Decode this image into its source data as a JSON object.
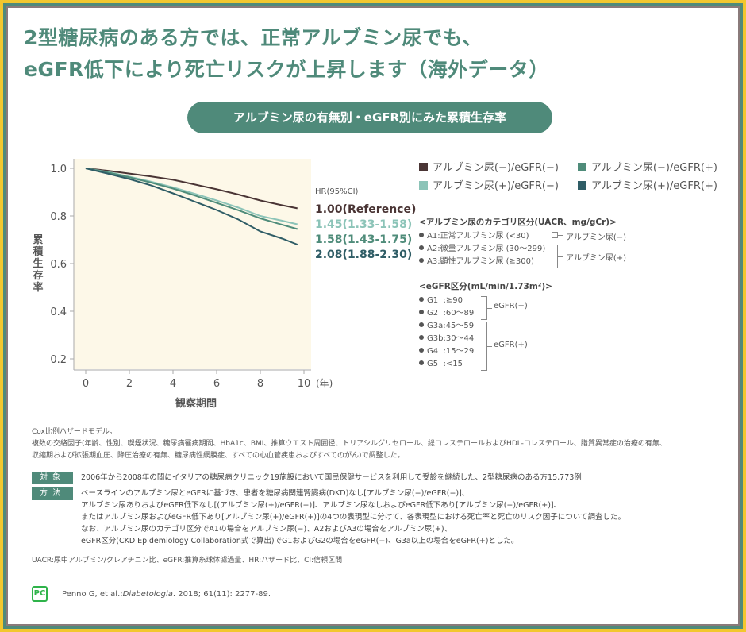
{
  "title_lines": [
    "2型糖尿病のある方では、正常アルブミン尿でも、",
    "eGFR低下により死亡リスクが上昇します（海外データ）"
  ],
  "subtitle": "アルブミン尿の有無別・eGFR別にみた累積生存率",
  "chart_data": {
    "type": "line",
    "xlabel": "観察期間",
    "ylabel": "累積生存率",
    "x_unit": "(年)",
    "xlim": [
      0,
      10
    ],
    "ylim": [
      0.2,
      1.0
    ],
    "xticks": [
      "0",
      "2",
      "4",
      "6",
      "8",
      "10"
    ],
    "yticks": [
      "1.0",
      "0.8",
      "0.6",
      "0.4",
      "0.2"
    ],
    "hr_header": "HR(95%CI)",
    "series": [
      {
        "name": "アルブミン尿(−)/eGFR(−)",
        "color": "#4a3535",
        "hr": "1.00(Reference)",
        "x": [
          0,
          1,
          2,
          3,
          4,
          5,
          6,
          7,
          8,
          9,
          9.7
        ],
        "y": [
          1.0,
          0.99,
          0.978,
          0.966,
          0.952,
          0.932,
          0.912,
          0.89,
          0.865,
          0.845,
          0.832
        ]
      },
      {
        "name": "アルブミン尿(+)/eGFR(−)",
        "color": "#8cc4b8",
        "hr": "1.45(1.33-1.58)",
        "x": [
          0,
          1,
          2,
          3,
          4,
          5,
          6,
          7,
          8,
          9,
          9.7
        ],
        "y": [
          1.0,
          0.985,
          0.965,
          0.944,
          0.92,
          0.893,
          0.865,
          0.835,
          0.8,
          0.78,
          0.765
        ]
      },
      {
        "name": "アルブミン尿(−)/eGFR(+)",
        "color": "#4f8c7a",
        "hr": "1.58(1.43-1.75)",
        "x": [
          0,
          1,
          2,
          3,
          4,
          5,
          6,
          7,
          8,
          9,
          9.7
        ],
        "y": [
          1.0,
          0.983,
          0.962,
          0.94,
          0.915,
          0.886,
          0.855,
          0.824,
          0.79,
          0.763,
          0.745
        ]
      },
      {
        "name": "アルブミン尿(+)/eGFR(+)",
        "color": "#2f5d66",
        "hr": "2.08(1.88-2.30)",
        "x": [
          0,
          1,
          2,
          3,
          4,
          5,
          6,
          7,
          8,
          9,
          9.7
        ],
        "y": [
          1.0,
          0.978,
          0.955,
          0.928,
          0.895,
          0.86,
          0.825,
          0.785,
          0.735,
          0.705,
          0.68
        ]
      }
    ],
    "legend_order": [
      0,
      2,
      1,
      3
    ]
  },
  "albuminuria": {
    "header": "<アルブミン尿のカテゴリ区分(UACR、mg/gCr)>",
    "items": [
      "A1:正常アルブミン尿 (<30)",
      "A2:微量アルブミン尿 (30〜299)",
      "A3:顕性アルブミン尿 (≧300)"
    ],
    "neg": "アルブミン尿(−)",
    "pos": "アルブミン尿(+)"
  },
  "egfr": {
    "header": "<eGFR区分(mL/min/1.73m²)>",
    "items": [
      "G1  :≧90",
      "G2  :60〜89",
      "G3a:45〜59",
      "G3b:30〜44",
      "G4  :15〜29",
      "G5  :<15"
    ],
    "neg": "eGFR(−)",
    "pos": "eGFR(+)"
  },
  "notes": [
    "Cox比例ハザードモデル。",
    "複数の交絡因子(年齢、性別、喫煙状況、糖尿病罹病期間、HbA1c、BMI、推算ウエスト周囲径、トリアシルグリセロール、総コレステロールおよびHDL-コレステロール、脂質異常症の治療の有無、",
    "収縮期および拡張期血圧、降圧治療の有無、糖尿病性網膜症、すべての心血管疾患およびすべてのがん)で調整した。"
  ],
  "subjects": {
    "label": "対象",
    "text": "2006年から2008年の間にイタリアの糖尿病クリニック19施設において国民保健サービスを利用して受診を継続した、2型糖尿病のある方15,773例"
  },
  "methods": {
    "label": "方法",
    "lines": [
      "ベースラインのアルブミン尿とeGFRに基づき、患者を糖尿病関連腎臓病(DKD)なし[アルブミン尿(−)/eGFR(−)]、",
      "アルブミン尿ありおよびeGFR低下なし[(アルブミン尿(+)/eGFR(−)]、アルブミン尿なしおよびeGFR低下あり[アルブミン尿(−)/eGFR(+)]、",
      "またはアルブミン尿およびeGFR低下あり[アルブミン尿(+)/eGFR(+)]の4つの表現型に分けて、各表現型における死亡率と死亡のリスク因子について調査した。",
      "なお、アルブミン尿のカテゴリ区分でA1の場合をアルブミン尿(−)、A2およびA3の場合をアルブミン尿(+)、",
      "eGFR区分(CKD Epidemiology Collaboration式で算出)でG1およびG2の場合をeGFR(−)、G3a以上の場合をeGFR(+)とした。"
    ]
  },
  "abbreviations": "UACR:尿中アルブミン/クレアチニン比、eGFR:推算糸球体濾過量、HR:ハザード比、CI:信頼区間",
  "reference": {
    "logo": "PC",
    "authors": "Penno G, et al.: ",
    "journal": "Diabetologia",
    "rest": ". 2018; 61(11): 2277-89."
  }
}
